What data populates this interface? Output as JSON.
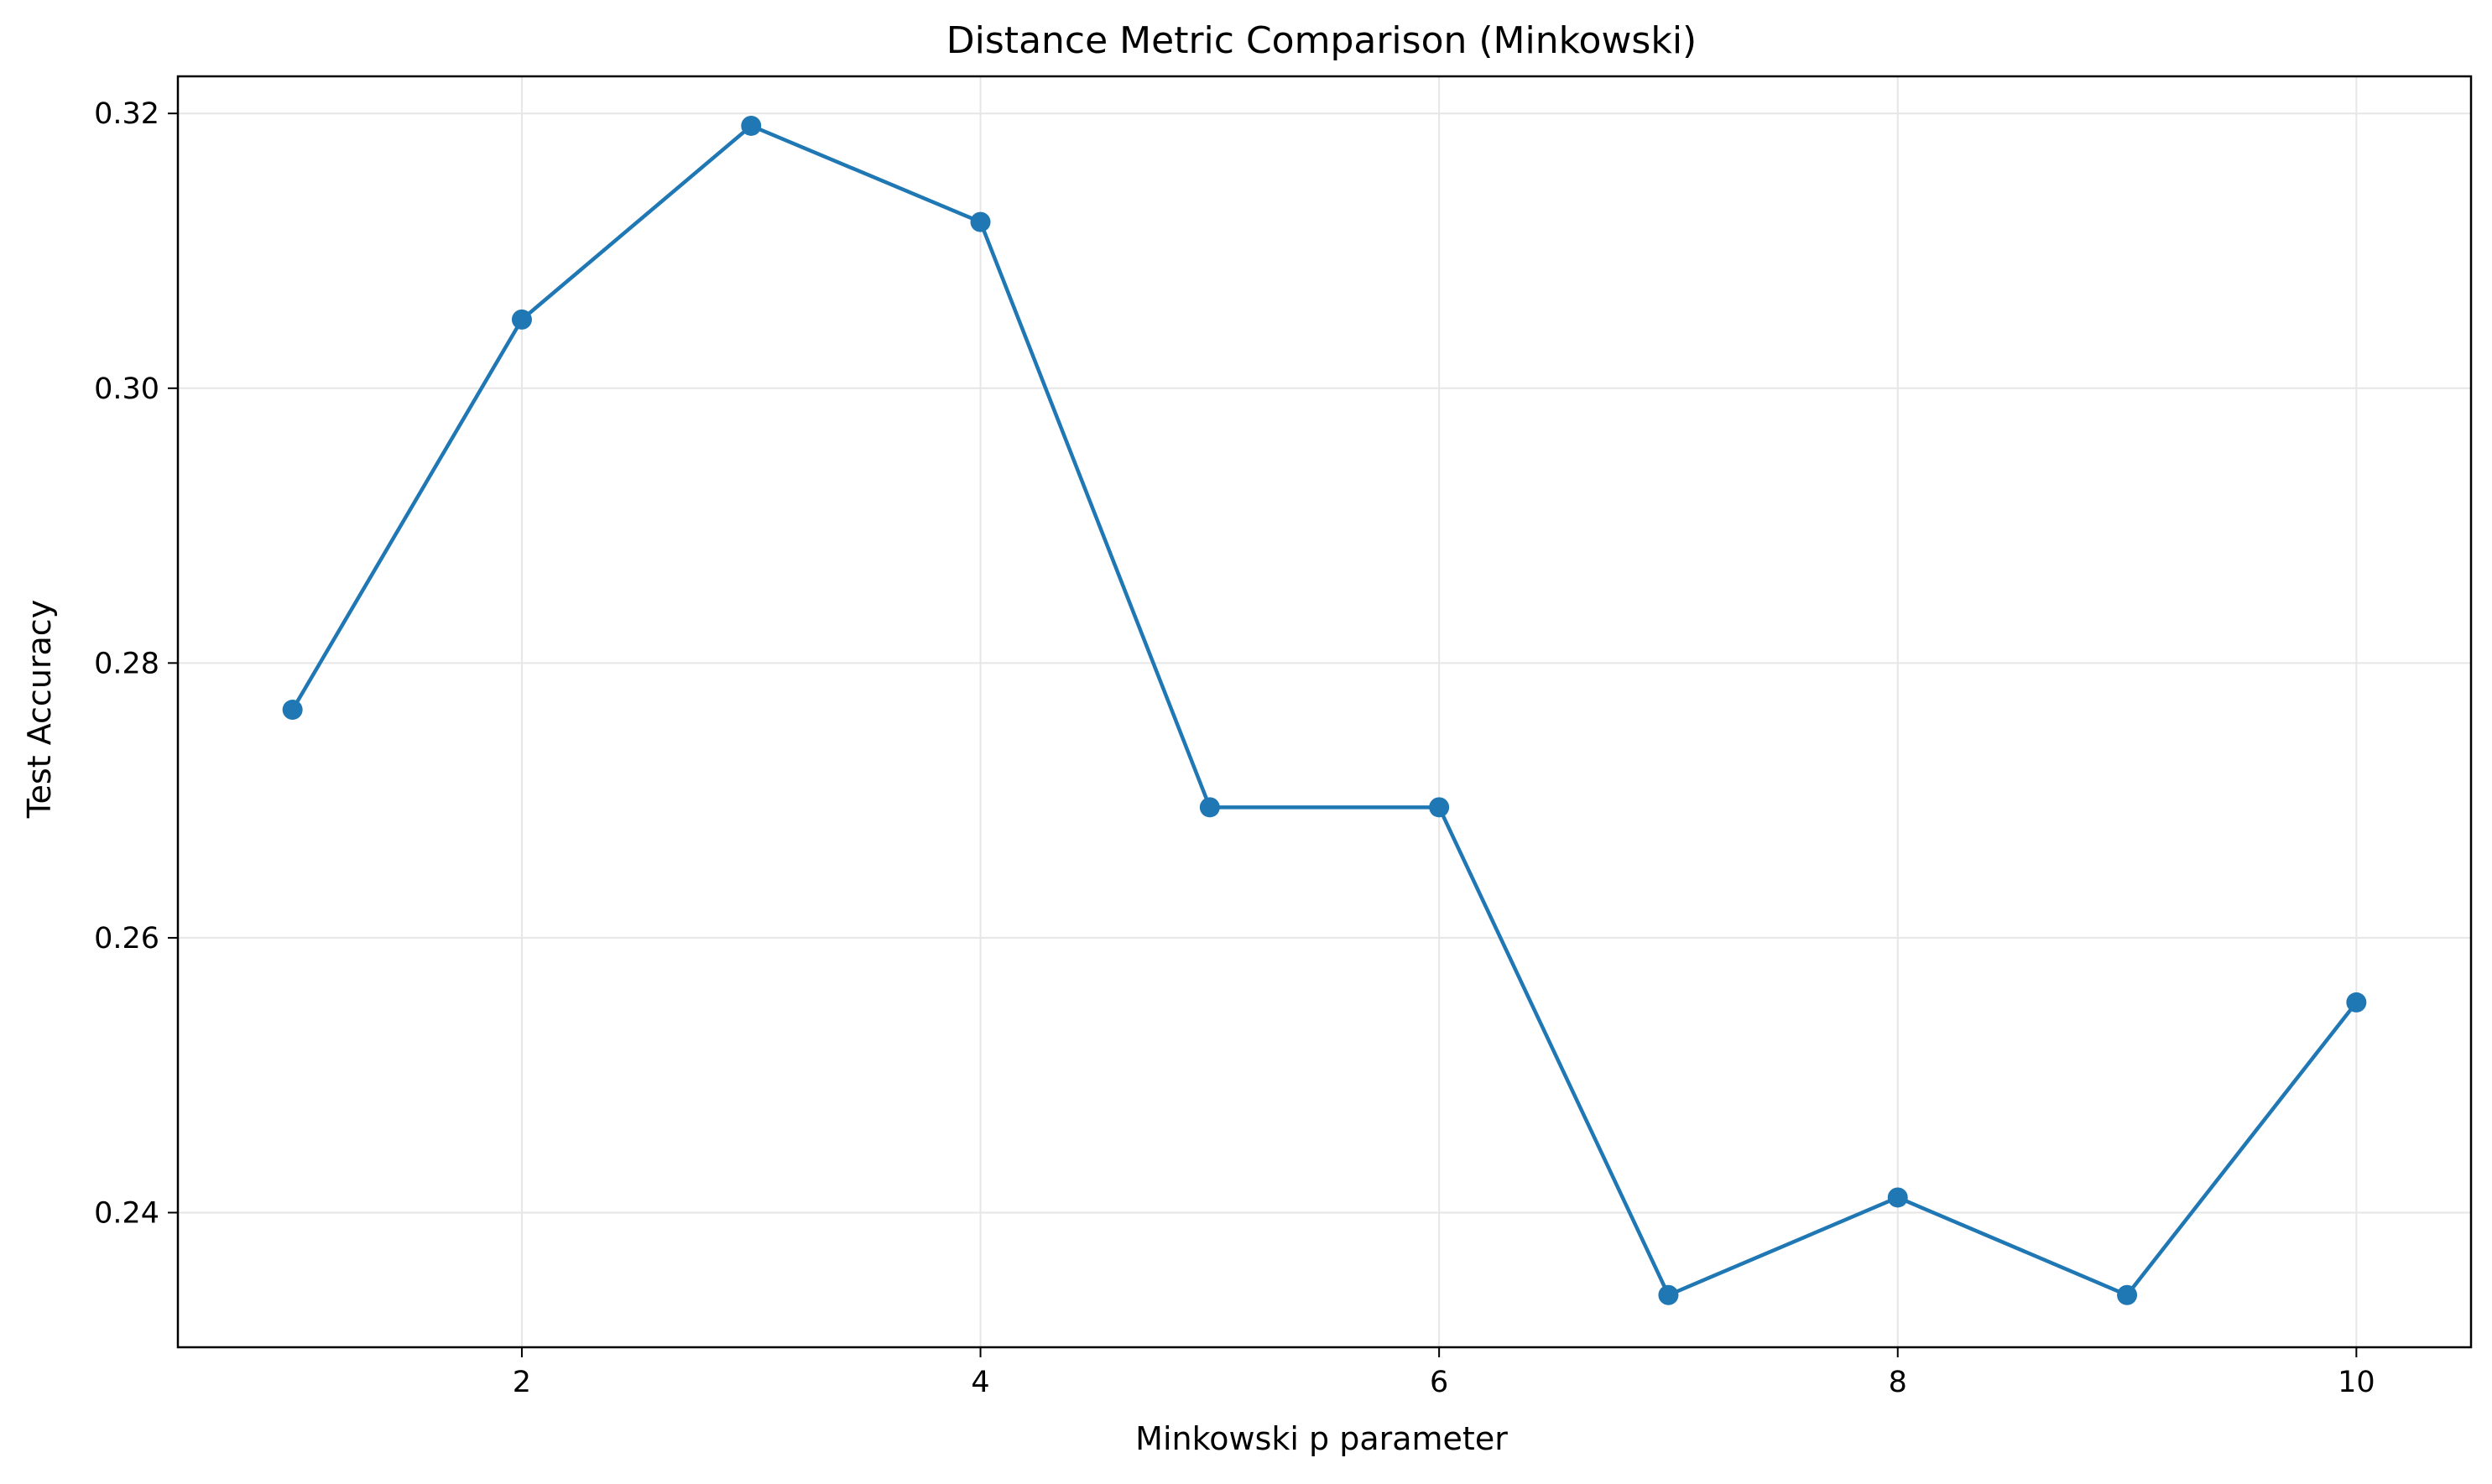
{
  "chart_data": {
    "type": "line",
    "title": "Distance Metric Comparison (Minkowski)",
    "xlabel": "Minkowski p parameter",
    "ylabel": "Test Accuracy",
    "x": [
      1,
      2,
      3,
      4,
      5,
      6,
      7,
      8,
      9,
      10
    ],
    "series": [
      {
        "values": [
          0.2766,
          0.305,
          0.3191,
          0.3121,
          0.2695,
          0.2695,
          0.234,
          0.2411,
          0.234,
          0.2553
        ]
      }
    ],
    "xlim": [
      0.5,
      10.5
    ],
    "ylim": [
      0.2302,
      0.3227
    ],
    "xticks": [
      2,
      4,
      6,
      8,
      10
    ],
    "xtick_labels": [
      "2",
      "4",
      "6",
      "8",
      "10"
    ],
    "yticks": [
      0.24,
      0.26,
      0.28,
      0.3,
      0.32
    ],
    "ytick_labels": [
      "0.24",
      "0.26",
      "0.28",
      "0.30",
      "0.32"
    ],
    "grid": true,
    "line_color": "#1f77b4",
    "marker": "circle",
    "grid_color": "#e6e6e6"
  }
}
